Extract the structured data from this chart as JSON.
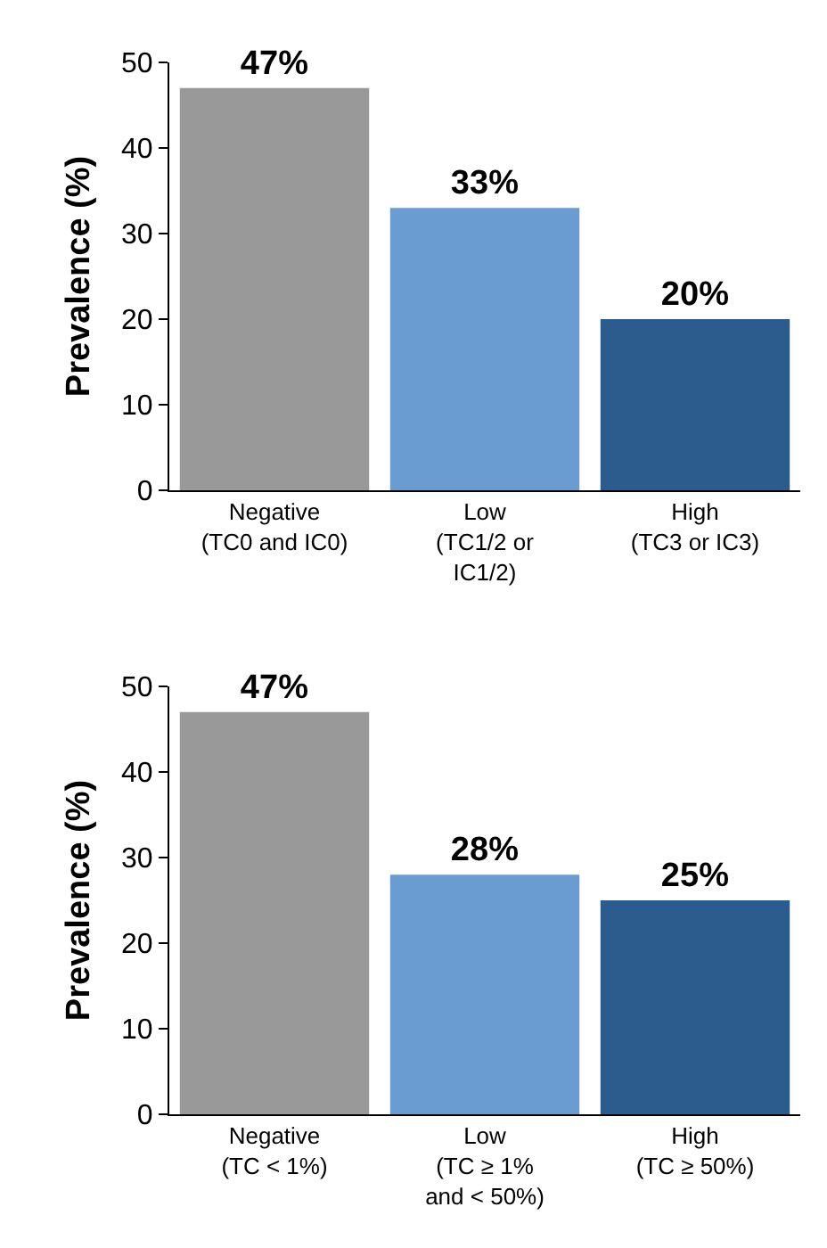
{
  "chart_data": [
    {
      "type": "bar",
      "ylabel": "Prevalence (%)",
      "categories": [
        "Negative\n(TC0 and IC0)",
        "Low\n(TC1/2 or\nIC1/2)",
        "High\n(TC3 or IC3)"
      ],
      "values": [
        47,
        33,
        20
      ],
      "colors": [
        "#999999",
        "#6a9bd1",
        "#2c5b8e"
      ],
      "value_labels": [
        "47%",
        "33%",
        "20%"
      ],
      "ylim": [
        0,
        50
      ],
      "yticks": [
        0,
        10,
        20,
        30,
        40,
        50
      ],
      "grid": false
    },
    {
      "type": "bar",
      "ylabel": "Prevalence (%)",
      "categories": [
        "Negative\n(TC < 1%)",
        "Low\n(TC ≥ 1%\nand < 50%)",
        "High\n(TC ≥ 50%)"
      ],
      "values": [
        47,
        28,
        25
      ],
      "colors": [
        "#999999",
        "#6a9bd1",
        "#2c5b8e"
      ],
      "value_labels": [
        "47%",
        "28%",
        "25%"
      ],
      "ylim": [
        0,
        50
      ],
      "yticks": [
        0,
        10,
        20,
        30,
        40,
        50
      ],
      "grid": false
    }
  ]
}
